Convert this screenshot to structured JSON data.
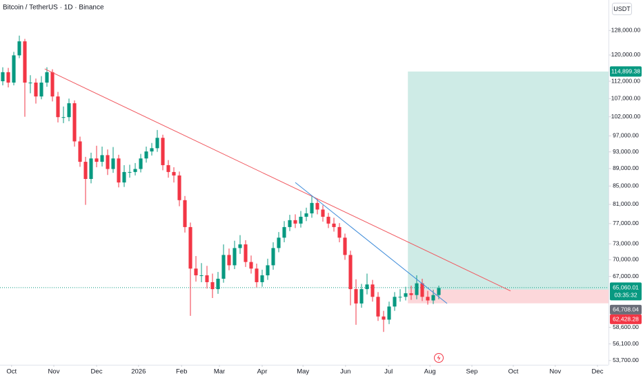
{
  "chart_data": {
    "type": "candlestick",
    "title": "Bitcoin / TetherUS · 1D · Binance",
    "currency": "USDT",
    "log_scale": true,
    "up_color": "#089981",
    "down_color": "#f23645",
    "ylim": [
      53100,
      138700
    ],
    "xlim": [
      -0.5,
      109.75
    ],
    "yticks": [
      {
        "value": 128000,
        "label": "128,000.00"
      },
      {
        "value": 120000,
        "label": "120,000.00"
      },
      {
        "value": 112000,
        "label": "112,000.00"
      },
      {
        "value": 107000,
        "label": "107,000.00"
      },
      {
        "value": 102000,
        "label": "102,000.00"
      },
      {
        "value": 97000,
        "label": "97,000.00"
      },
      {
        "value": 93000,
        "label": "93,000.00"
      },
      {
        "value": 89000,
        "label": "89,000.00"
      },
      {
        "value": 85000,
        "label": "85,000.00"
      },
      {
        "value": 81000,
        "label": "81,000.00"
      },
      {
        "value": 77000,
        "label": "77,000.00"
      },
      {
        "value": 73000,
        "label": "73,000.00"
      },
      {
        "value": 70000,
        "label": "70,000.00"
      },
      {
        "value": 67000,
        "label": "67,000.00"
      },
      {
        "value": 58600,
        "label": "58,600.00"
      },
      {
        "value": 56100,
        "label": "56,100.00"
      },
      {
        "value": 53700,
        "label": "53,700.00"
      }
    ],
    "xticks": [
      {
        "value": 1.6,
        "label": "Oct"
      },
      {
        "value": 9.25,
        "label": "Nov"
      },
      {
        "value": 17,
        "label": "Dec"
      },
      {
        "value": 24.6,
        "label": "2026"
      },
      {
        "value": 32.4,
        "label": "Feb"
      },
      {
        "value": 39.25,
        "label": "Mar"
      },
      {
        "value": 47,
        "label": "Apr"
      },
      {
        "value": 54.4,
        "label": "May"
      },
      {
        "value": 62.1,
        "label": "Jun"
      },
      {
        "value": 69.9,
        "label": "Jul"
      },
      {
        "value": 77.4,
        "label": "Aug"
      },
      {
        "value": 85,
        "label": "Sep"
      },
      {
        "value": 92.5,
        "label": "Oct"
      },
      {
        "value": 100.1,
        "label": "Nov"
      },
      {
        "value": 107.75,
        "label": "Dec"
      }
    ],
    "candles": [
      {
        "o": 112000,
        "h": 116200,
        "l": 110800,
        "c": 114700
      },
      {
        "o": 114700,
        "h": 116000,
        "l": 110200,
        "c": 111600
      },
      {
        "o": 111600,
        "h": 121000,
        "l": 110800,
        "c": 119900
      },
      {
        "o": 119900,
        "h": 126300,
        "l": 119000,
        "c": 124400
      },
      {
        "o": 124400,
        "h": 125200,
        "l": 102000,
        "c": 111600
      },
      {
        "o": 111600,
        "h": 113800,
        "l": 108500,
        "c": 111600
      },
      {
        "o": 111600,
        "h": 112800,
        "l": 105600,
        "c": 107600
      },
      {
        "o": 107600,
        "h": 113500,
        "l": 106800,
        "c": 111600
      },
      {
        "o": 111600,
        "h": 116200,
        "l": 110400,
        "c": 114700
      },
      {
        "o": 114700,
        "h": 115600,
        "l": 106200,
        "c": 107600
      },
      {
        "o": 107600,
        "h": 108900,
        "l": 100500,
        "c": 101900
      },
      {
        "o": 101900,
        "h": 104800,
        "l": 100300,
        "c": 101900
      },
      {
        "o": 101900,
        "h": 107000,
        "l": 100800,
        "c": 105700
      },
      {
        "o": 105700,
        "h": 106500,
        "l": 94300,
        "c": 95600
      },
      {
        "o": 95600,
        "h": 96800,
        "l": 89400,
        "c": 90600
      },
      {
        "o": 90600,
        "h": 91800,
        "l": 80900,
        "c": 86600
      },
      {
        "o": 86600,
        "h": 92800,
        "l": 85600,
        "c": 91400
      },
      {
        "o": 91400,
        "h": 94500,
        "l": 89300,
        "c": 90600
      },
      {
        "o": 90600,
        "h": 94300,
        "l": 89500,
        "c": 92200
      },
      {
        "o": 92200,
        "h": 93600,
        "l": 87500,
        "c": 88900
      },
      {
        "o": 88900,
        "h": 94200,
        "l": 88000,
        "c": 91400
      },
      {
        "o": 91400,
        "h": 92300,
        "l": 84700,
        "c": 85800
      },
      {
        "o": 85800,
        "h": 89800,
        "l": 84800,
        "c": 88200
      },
      {
        "o": 88200,
        "h": 89900,
        "l": 86900,
        "c": 88200
      },
      {
        "o": 88200,
        "h": 90300,
        "l": 87400,
        "c": 88900
      },
      {
        "o": 88900,
        "h": 92500,
        "l": 88100,
        "c": 91400
      },
      {
        "o": 91400,
        "h": 94300,
        "l": 90400,
        "c": 93100
      },
      {
        "o": 93100,
        "h": 95200,
        "l": 92100,
        "c": 93900
      },
      {
        "o": 93900,
        "h": 98500,
        "l": 93000,
        "c": 96500
      },
      {
        "o": 96500,
        "h": 97300,
        "l": 88600,
        "c": 89800
      },
      {
        "o": 89800,
        "h": 91000,
        "l": 86900,
        "c": 88200
      },
      {
        "o": 88200,
        "h": 89300,
        "l": 85800,
        "c": 87400
      },
      {
        "o": 87400,
        "h": 88300,
        "l": 80600,
        "c": 81900
      },
      {
        "o": 81900,
        "h": 82800,
        "l": 75200,
        "c": 76300
      },
      {
        "o": 76300,
        "h": 77200,
        "l": 60400,
        "c": 68400
      },
      {
        "o": 68400,
        "h": 70700,
        "l": 66100,
        "c": 67200
      },
      {
        "o": 67200,
        "h": 69400,
        "l": 66000,
        "c": 67200
      },
      {
        "o": 67200,
        "h": 68900,
        "l": 64900,
        "c": 66000
      },
      {
        "o": 66000,
        "h": 67500,
        "l": 63300,
        "c": 64800
      },
      {
        "o": 64800,
        "h": 67800,
        "l": 64000,
        "c": 66600
      },
      {
        "o": 66600,
        "h": 72900,
        "l": 65900,
        "c": 70900
      },
      {
        "o": 70900,
        "h": 72100,
        "l": 68100,
        "c": 69000
      },
      {
        "o": 69000,
        "h": 73600,
        "l": 68300,
        "c": 72200
      },
      {
        "o": 72200,
        "h": 74700,
        "l": 71100,
        "c": 72900
      },
      {
        "o": 72900,
        "h": 73700,
        "l": 68700,
        "c": 69600
      },
      {
        "o": 69600,
        "h": 70800,
        "l": 67500,
        "c": 68400
      },
      {
        "o": 68400,
        "h": 69300,
        "l": 65100,
        "c": 66000
      },
      {
        "o": 66000,
        "h": 68200,
        "l": 65200,
        "c": 67200
      },
      {
        "o": 67200,
        "h": 70200,
        "l": 66400,
        "c": 69000
      },
      {
        "o": 69000,
        "h": 73300,
        "l": 68200,
        "c": 72200
      },
      {
        "o": 72200,
        "h": 75300,
        "l": 71400,
        "c": 74200
      },
      {
        "o": 74200,
        "h": 77500,
        "l": 73300,
        "c": 76300
      },
      {
        "o": 76300,
        "h": 78800,
        "l": 75500,
        "c": 77700
      },
      {
        "o": 77700,
        "h": 78900,
        "l": 76100,
        "c": 77000
      },
      {
        "o": 77000,
        "h": 79600,
        "l": 76200,
        "c": 78400
      },
      {
        "o": 78400,
        "h": 80300,
        "l": 77500,
        "c": 79100
      },
      {
        "o": 79100,
        "h": 82900,
        "l": 78200,
        "c": 81300
      },
      {
        "o": 81300,
        "h": 82200,
        "l": 78900,
        "c": 79900
      },
      {
        "o": 79900,
        "h": 80800,
        "l": 77400,
        "c": 78400
      },
      {
        "o": 78400,
        "h": 79200,
        "l": 76100,
        "c": 77000
      },
      {
        "o": 77000,
        "h": 78200,
        "l": 75400,
        "c": 76300
      },
      {
        "o": 76300,
        "h": 77100,
        "l": 73300,
        "c": 74200
      },
      {
        "o": 74200,
        "h": 75000,
        "l": 70000,
        "c": 70900
      },
      {
        "o": 70900,
        "h": 71700,
        "l": 62100,
        "c": 64800
      },
      {
        "o": 64800,
        "h": 66500,
        "l": 59000,
        "c": 62400
      },
      {
        "o": 62400,
        "h": 65700,
        "l": 61700,
        "c": 64800
      },
      {
        "o": 64800,
        "h": 67500,
        "l": 63900,
        "c": 65600
      },
      {
        "o": 65600,
        "h": 66400,
        "l": 62700,
        "c": 63500
      },
      {
        "o": 63500,
        "h": 64300,
        "l": 59600,
        "c": 60300
      },
      {
        "o": 60300,
        "h": 61200,
        "l": 57900,
        "c": 59800
      },
      {
        "o": 59800,
        "h": 62700,
        "l": 59100,
        "c": 61900
      },
      {
        "o": 61900,
        "h": 64300,
        "l": 61200,
        "c": 63500
      },
      {
        "o": 63500,
        "h": 64800,
        "l": 62700,
        "c": 63500
      },
      {
        "o": 63500,
        "h": 65200,
        "l": 62900,
        "c": 64100
      },
      {
        "o": 64100,
        "h": 65400,
        "l": 63000,
        "c": 63800
      },
      {
        "o": 63800,
        "h": 67200,
        "l": 63100,
        "c": 65800
      },
      {
        "o": 65800,
        "h": 66600,
        "l": 62800,
        "c": 63500
      },
      {
        "o": 63500,
        "h": 64500,
        "l": 62200,
        "c": 62900
      },
      {
        "o": 62900,
        "h": 64700,
        "l": 62300,
        "c": 63800
      },
      {
        "o": 63800,
        "h": 65400,
        "l": 63100,
        "c": 65000
      }
    ],
    "trendlines": [
      {
        "color": "#f0585f",
        "points": [
          [
            7.6,
            115700
          ],
          [
            92,
            64500
          ]
        ]
      },
      {
        "color": "#3d8bd9",
        "points": [
          [
            53,
            85800
          ],
          [
            80.5,
            62400
          ]
        ]
      }
    ],
    "position": {
      "start": 73.4,
      "target": {
        "value": 114899.38,
        "label": "114,899.38"
      },
      "entry": {
        "value": 64708.04,
        "label": "64,708.04"
      },
      "stop": {
        "value": 62428.28,
        "label": "62,428.28"
      }
    },
    "last_price": {
      "value": 65060.01,
      "label": "65,060.01"
    },
    "countdown": "03:35:32"
  }
}
